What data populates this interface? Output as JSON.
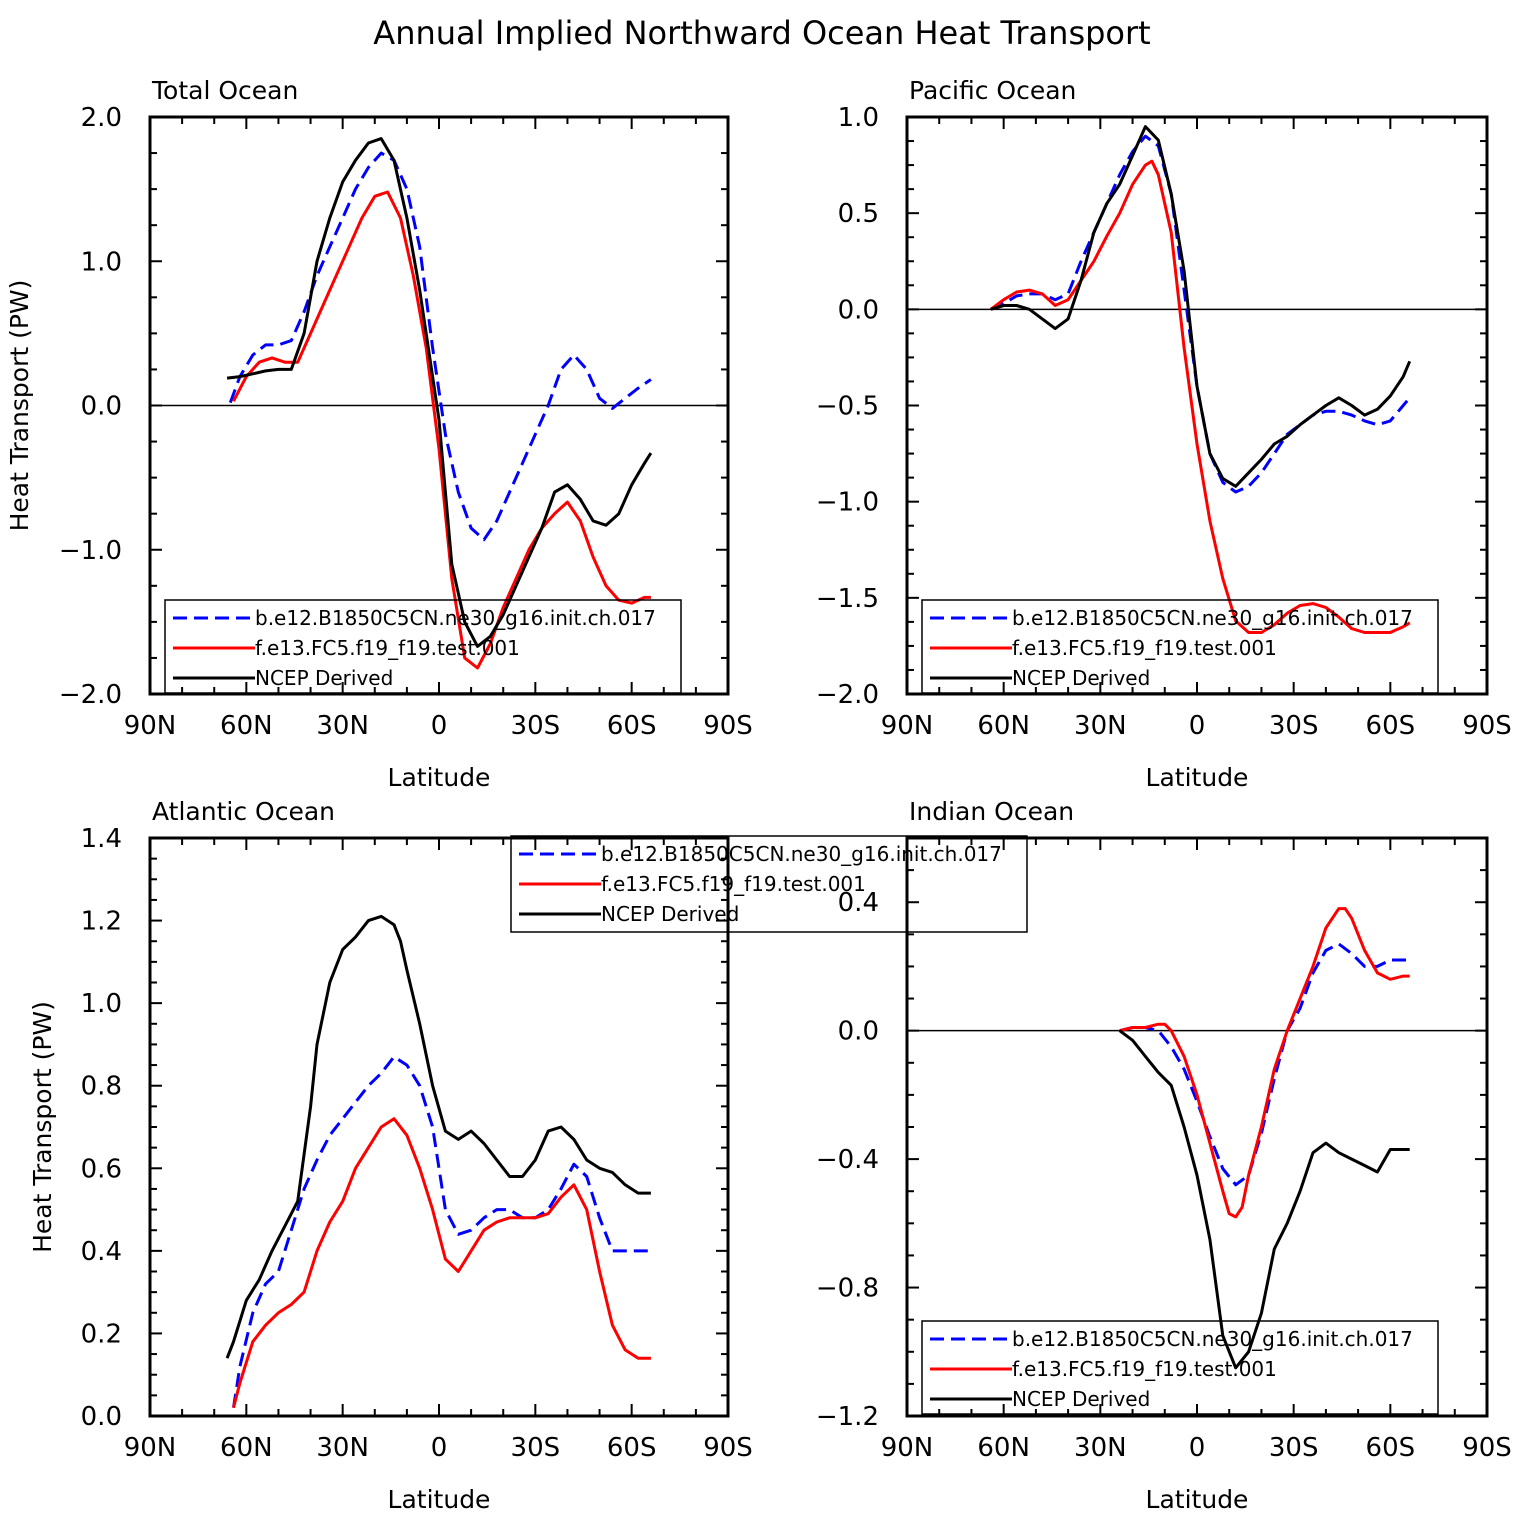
{
  "title": "Annual Implied Northward Ocean Heat Transport",
  "colors": {
    "model_b": "#0000ff",
    "model_f": "#ff0000",
    "ncep": "#000000"
  },
  "chart_data": [
    {
      "type": "line",
      "title": "Total Ocean",
      "xlabel": "Latitude",
      "ylabel": "Heat Transport (PW)",
      "xlim": [
        90,
        -90
      ],
      "ylim": [
        -2.0,
        2.0
      ],
      "x_ticks": [
        90,
        60,
        30,
        0,
        -30,
        -60,
        -90
      ],
      "x_tick_labels": [
        "90N",
        "60N",
        "30N",
        "0",
        "30S",
        "60S",
        "90S"
      ],
      "y_ticks": [
        -2.0,
        -1.0,
        0.0,
        1.0,
        2.0
      ],
      "y_tick_labels": [
        "−2.0",
        "−1.0",
        "0.0",
        "1.0",
        "2.0"
      ],
      "zero_line": true,
      "legend": {
        "position": "bottom-center",
        "entries": [
          "b.e12.B1850C5CN.ne30_g16.init.ch.017",
          "f.e13.FC5.f19_f19.test.001",
          "NCEP Derived"
        ]
      },
      "series": [
        {
          "name": "b.e12.B1850C5CN.ne30_g16.init.ch.017",
          "style": "dashed",
          "color": "#0000ff",
          "x": [
            65,
            62,
            58,
            54,
            50,
            46,
            42,
            38,
            34,
            30,
            26,
            22,
            18,
            14,
            10,
            6,
            2,
            -2,
            -6,
            -10,
            -14,
            -18,
            -22,
            -26,
            -30,
            -34,
            -38,
            -42,
            -46,
            -50,
            -54,
            -58,
            -62,
            -66
          ],
          "y": [
            0.02,
            0.2,
            0.35,
            0.42,
            0.42,
            0.45,
            0.65,
            0.9,
            1.1,
            1.3,
            1.5,
            1.65,
            1.75,
            1.7,
            1.5,
            1.1,
            0.4,
            -0.2,
            -0.6,
            -0.85,
            -0.93,
            -0.8,
            -0.6,
            -0.4,
            -0.2,
            0.0,
            0.25,
            0.35,
            0.25,
            0.05,
            -0.02,
            0.05,
            0.12,
            0.18
          ]
        },
        {
          "name": "f.e13.FC5.f19_f19.test.001",
          "style": "solid",
          "color": "#ff0000",
          "x": [
            64,
            60,
            56,
            52,
            48,
            44,
            40,
            36,
            32,
            28,
            24,
            20,
            16,
            12,
            8,
            4,
            0,
            -4,
            -8,
            -12,
            -16,
            -20,
            -24,
            -28,
            -32,
            -36,
            -40,
            -44,
            -48,
            -52,
            -56,
            -60,
            -64,
            -66
          ],
          "y": [
            0.03,
            0.2,
            0.3,
            0.33,
            0.3,
            0.3,
            0.5,
            0.7,
            0.9,
            1.1,
            1.3,
            1.45,
            1.48,
            1.3,
            0.9,
            0.4,
            -0.3,
            -1.2,
            -1.75,
            -1.82,
            -1.65,
            -1.4,
            -1.2,
            -1.0,
            -0.85,
            -0.75,
            -0.67,
            -0.8,
            -1.05,
            -1.25,
            -1.35,
            -1.37,
            -1.33,
            -1.33
          ]
        },
        {
          "name": "NCEP Derived",
          "style": "solid",
          "color": "#000000",
          "x": [
            66,
            62,
            58,
            54,
            50,
            46,
            42,
            38,
            34,
            30,
            26,
            22,
            18,
            14,
            10,
            6,
            2,
            0,
            -4,
            -8,
            -12,
            -16,
            -20,
            -24,
            -28,
            -32,
            -36,
            -40,
            -44,
            -48,
            -52,
            -56,
            -60,
            -64,
            -66
          ],
          "y": [
            0.19,
            0.2,
            0.22,
            0.24,
            0.25,
            0.25,
            0.5,
            1.0,
            1.3,
            1.55,
            1.7,
            1.82,
            1.85,
            1.7,
            1.3,
            0.8,
            0.2,
            -0.1,
            -1.1,
            -1.5,
            -1.67,
            -1.6,
            -1.45,
            -1.25,
            -1.05,
            -0.85,
            -0.6,
            -0.55,
            -0.65,
            -0.8,
            -0.83,
            -0.75,
            -0.55,
            -0.4,
            -0.33
          ]
        }
      ]
    },
    {
      "type": "line",
      "title": "Pacific Ocean",
      "xlabel": "Latitude",
      "ylabel": "",
      "xlim": [
        90,
        -90
      ],
      "ylim": [
        -2.0,
        1.0
      ],
      "x_ticks": [
        90,
        60,
        30,
        0,
        -30,
        -60,
        -90
      ],
      "x_tick_labels": [
        "90N",
        "60N",
        "30N",
        "0",
        "30S",
        "60S",
        "90S"
      ],
      "y_ticks": [
        -2.0,
        -1.5,
        -1.0,
        -0.5,
        0.0,
        0.5,
        1.0
      ],
      "y_tick_labels": [
        "−2.0",
        "−1.5",
        "−1.0",
        "−0.5",
        "0.0",
        "0.5",
        "1.0"
      ],
      "zero_line": true,
      "legend": {
        "position": "bottom-center",
        "entries": [
          "b.e12.B1850C5CN.ne30_g16.init.ch.017",
          "f.e13.FC5.f19_f19.test.001",
          "NCEP Derived"
        ]
      },
      "series": [
        {
          "name": "b.e12.B1850C5CN.ne30_g16.init.ch.017",
          "style": "dashed",
          "color": "#0000ff",
          "x": [
            64,
            60,
            56,
            52,
            48,
            44,
            40,
            36,
            32,
            28,
            24,
            20,
            16,
            12,
            8,
            4,
            0,
            -4,
            -8,
            -12,
            -16,
            -20,
            -24,
            -28,
            -32,
            -36,
            -40,
            -44,
            -48,
            -52,
            -56,
            -60,
            -64,
            -66
          ],
          "y": [
            0.0,
            0.03,
            0.07,
            0.08,
            0.08,
            0.05,
            0.08,
            0.25,
            0.4,
            0.55,
            0.7,
            0.82,
            0.9,
            0.85,
            0.6,
            0.1,
            -0.4,
            -0.75,
            -0.9,
            -0.95,
            -0.92,
            -0.85,
            -0.75,
            -0.65,
            -0.6,
            -0.55,
            -0.53,
            -0.53,
            -0.55,
            -0.58,
            -0.6,
            -0.58,
            -0.5,
            -0.46
          ]
        },
        {
          "name": "f.e13.FC5.f19_f19.test.001",
          "style": "solid",
          "color": "#ff0000",
          "x": [
            64,
            60,
            56,
            52,
            48,
            44,
            40,
            36,
            32,
            28,
            24,
            20,
            16,
            14,
            12,
            8,
            4,
            0,
            -4,
            -8,
            -12,
            -16,
            -20,
            -24,
            -28,
            -32,
            -36,
            -40,
            -44,
            -48,
            -52,
            -56,
            -60,
            -64,
            -66
          ],
          "y": [
            0.0,
            0.05,
            0.09,
            0.1,
            0.08,
            0.02,
            0.05,
            0.15,
            0.25,
            0.38,
            0.5,
            0.65,
            0.75,
            0.77,
            0.7,
            0.4,
            -0.2,
            -0.7,
            -1.1,
            -1.4,
            -1.62,
            -1.68,
            -1.68,
            -1.64,
            -1.58,
            -1.54,
            -1.53,
            -1.55,
            -1.6,
            -1.66,
            -1.68,
            -1.68,
            -1.68,
            -1.65,
            -1.63
          ]
        },
        {
          "name": "NCEP Derived",
          "style": "solid",
          "color": "#000000",
          "x": [
            64,
            60,
            56,
            52,
            48,
            44,
            40,
            36,
            32,
            28,
            24,
            20,
            16,
            12,
            8,
            4,
            0,
            -4,
            -8,
            -12,
            -16,
            -20,
            -24,
            -28,
            -32,
            -36,
            -40,
            -44,
            -48,
            -52,
            -56,
            -60,
            -64,
            -66
          ],
          "y": [
            0.0,
            0.02,
            0.02,
            0.0,
            -0.05,
            -0.1,
            -0.05,
            0.15,
            0.4,
            0.55,
            0.65,
            0.8,
            0.95,
            0.88,
            0.6,
            0.2,
            -0.4,
            -0.75,
            -0.88,
            -0.92,
            -0.85,
            -0.78,
            -0.7,
            -0.66,
            -0.6,
            -0.55,
            -0.5,
            -0.46,
            -0.5,
            -0.55,
            -0.52,
            -0.45,
            -0.35,
            -0.27
          ]
        }
      ]
    },
    {
      "type": "line",
      "title": "Atlantic Ocean",
      "xlabel": "Latitude",
      "ylabel": "Heat Transport (PW)",
      "xlim": [
        90,
        -90
      ],
      "ylim": [
        0.0,
        1.4
      ],
      "x_ticks": [
        90,
        60,
        30,
        0,
        -30,
        -60,
        -90
      ],
      "x_tick_labels": [
        "90N",
        "60N",
        "30N",
        "0",
        "30S",
        "60S",
        "90S"
      ],
      "y_ticks": [
        0.0,
        0.2,
        0.4,
        0.6,
        0.8,
        1.0,
        1.2,
        1.4
      ],
      "y_tick_labels": [
        "0.0",
        "0.2",
        "0.4",
        "0.6",
        "0.8",
        "1.0",
        "1.2",
        "1.4"
      ],
      "zero_line": false,
      "legend": {
        "position": "top-center",
        "entries": [
          "b.e12.B1850C5CN.ne30_g16.init.ch.017",
          "f.e13.FC5.f19_f19.test.001",
          "NCEP Derived"
        ]
      },
      "series": [
        {
          "name": "b.e12.B1850C5CN.ne30_g16.init.ch.017",
          "style": "dashed",
          "color": "#0000ff",
          "x": [
            64,
            62,
            58,
            54,
            50,
            46,
            42,
            38,
            34,
            30,
            26,
            22,
            18,
            14,
            10,
            6,
            2,
            -2,
            -6,
            -10,
            -14,
            -18,
            -22,
            -26,
            -30,
            -34,
            -38,
            -42,
            -46,
            -50,
            -54,
            -58,
            -62,
            -66
          ],
          "y": [
            0.02,
            0.12,
            0.25,
            0.32,
            0.35,
            0.45,
            0.55,
            0.62,
            0.68,
            0.72,
            0.76,
            0.8,
            0.83,
            0.87,
            0.85,
            0.8,
            0.7,
            0.5,
            0.44,
            0.45,
            0.48,
            0.5,
            0.5,
            0.48,
            0.48,
            0.5,
            0.55,
            0.61,
            0.58,
            0.48,
            0.4,
            0.4,
            0.4,
            0.4
          ]
        },
        {
          "name": "f.e13.FC5.f19_f19.test.001",
          "style": "solid",
          "color": "#ff0000",
          "x": [
            64,
            62,
            58,
            54,
            50,
            46,
            42,
            38,
            34,
            30,
            26,
            22,
            18,
            14,
            10,
            6,
            2,
            -2,
            -6,
            -10,
            -14,
            -18,
            -22,
            -26,
            -30,
            -34,
            -38,
            -42,
            -46,
            -50,
            -54,
            -58,
            -62,
            -66
          ],
          "y": [
            0.02,
            0.08,
            0.18,
            0.22,
            0.25,
            0.27,
            0.3,
            0.4,
            0.47,
            0.52,
            0.6,
            0.65,
            0.7,
            0.72,
            0.68,
            0.6,
            0.5,
            0.38,
            0.35,
            0.4,
            0.45,
            0.47,
            0.48,
            0.48,
            0.48,
            0.49,
            0.53,
            0.56,
            0.5,
            0.35,
            0.22,
            0.16,
            0.14,
            0.14
          ]
        },
        {
          "name": "NCEP Derived",
          "style": "solid",
          "color": "#000000",
          "x": [
            66,
            64,
            60,
            56,
            52,
            48,
            44,
            40,
            38,
            34,
            30,
            26,
            22,
            18,
            14,
            12,
            10,
            6,
            2,
            -2,
            -6,
            -10,
            -14,
            -18,
            -22,
            -26,
            -30,
            -34,
            -38,
            -42,
            -46,
            -50,
            -54,
            -58,
            -62,
            -66
          ],
          "y": [
            0.14,
            0.18,
            0.28,
            0.33,
            0.4,
            0.46,
            0.52,
            0.75,
            0.9,
            1.05,
            1.13,
            1.16,
            1.2,
            1.21,
            1.19,
            1.15,
            1.08,
            0.95,
            0.8,
            0.69,
            0.67,
            0.69,
            0.66,
            0.62,
            0.58,
            0.58,
            0.62,
            0.69,
            0.7,
            0.67,
            0.62,
            0.6,
            0.59,
            0.56,
            0.54,
            0.54
          ]
        }
      ]
    },
    {
      "type": "line",
      "title": "Indian Ocean",
      "xlabel": "Latitude",
      "ylabel": "",
      "xlim": [
        90,
        -90
      ],
      "ylim": [
        -1.2,
        0.6
      ],
      "x_ticks": [
        90,
        60,
        30,
        0,
        -30,
        -60,
        -90
      ],
      "x_tick_labels": [
        "90N",
        "60N",
        "30N",
        "0",
        "30S",
        "60S",
        "90S"
      ],
      "y_ticks": [
        -1.2,
        -0.8,
        -0.4,
        0.0,
        0.4
      ],
      "y_tick_labels": [
        "−1.2",
        "−0.8",
        "−0.4",
        "0.0",
        "0.4"
      ],
      "zero_line": true,
      "legend": {
        "position": "bottom-center",
        "entries": [
          "b.e12.B1850C5CN.ne30_g16.init.ch.017",
          "f.e13.FC5.f19_f19.test.001",
          "NCEP Derived"
        ]
      },
      "series": [
        {
          "name": "b.e12.B1850C5CN.ne30_g16.init.ch.017",
          "style": "dashed",
          "color": "#0000ff",
          "x": [
            24,
            20,
            16,
            12,
            8,
            4,
            0,
            -4,
            -8,
            -12,
            -16,
            -20,
            -24,
            -28,
            -32,
            -36,
            -40,
            -44,
            -48,
            -52,
            -56,
            -60,
            -64,
            -66
          ],
          "y": [
            0.0,
            0.01,
            0.01,
            0.0,
            -0.05,
            -0.12,
            -0.22,
            -0.33,
            -0.43,
            -0.48,
            -0.45,
            -0.32,
            -0.15,
            0.0,
            0.07,
            0.18,
            0.25,
            0.27,
            0.24,
            0.2,
            0.2,
            0.22,
            0.22,
            0.22
          ]
        },
        {
          "name": "f.e13.FC5.f19_f19.test.001",
          "style": "solid",
          "color": "#ff0000",
          "x": [
            24,
            20,
            16,
            12,
            10,
            8,
            4,
            0,
            -4,
            -8,
            -10,
            -12,
            -14,
            -16,
            -20,
            -24,
            -28,
            -32,
            -36,
            -40,
            -44,
            -46,
            -48,
            -52,
            -56,
            -60,
            -64,
            -66
          ],
          "y": [
            0.0,
            0.01,
            0.01,
            0.02,
            0.02,
            0.0,
            -0.08,
            -0.2,
            -0.35,
            -0.5,
            -0.57,
            -0.58,
            -0.55,
            -0.45,
            -0.3,
            -0.12,
            0.0,
            0.1,
            0.2,
            0.32,
            0.38,
            0.38,
            0.35,
            0.25,
            0.18,
            0.16,
            0.17,
            0.17
          ]
        },
        {
          "name": "NCEP Derived",
          "style": "solid",
          "color": "#000000",
          "x": [
            24,
            20,
            16,
            12,
            8,
            4,
            0,
            -4,
            -8,
            -12,
            -16,
            -20,
            -24,
            -28,
            -32,
            -36,
            -40,
            -44,
            -48,
            -52,
            -56,
            -60,
            -64,
            -66
          ],
          "y": [
            0.0,
            -0.03,
            -0.08,
            -0.13,
            -0.17,
            -0.3,
            -0.45,
            -0.65,
            -0.95,
            -1.05,
            -1.0,
            -0.88,
            -0.68,
            -0.6,
            -0.5,
            -0.38,
            -0.35,
            -0.38,
            -0.4,
            -0.42,
            -0.44,
            -0.37,
            -0.37,
            -0.37
          ]
        }
      ]
    }
  ]
}
